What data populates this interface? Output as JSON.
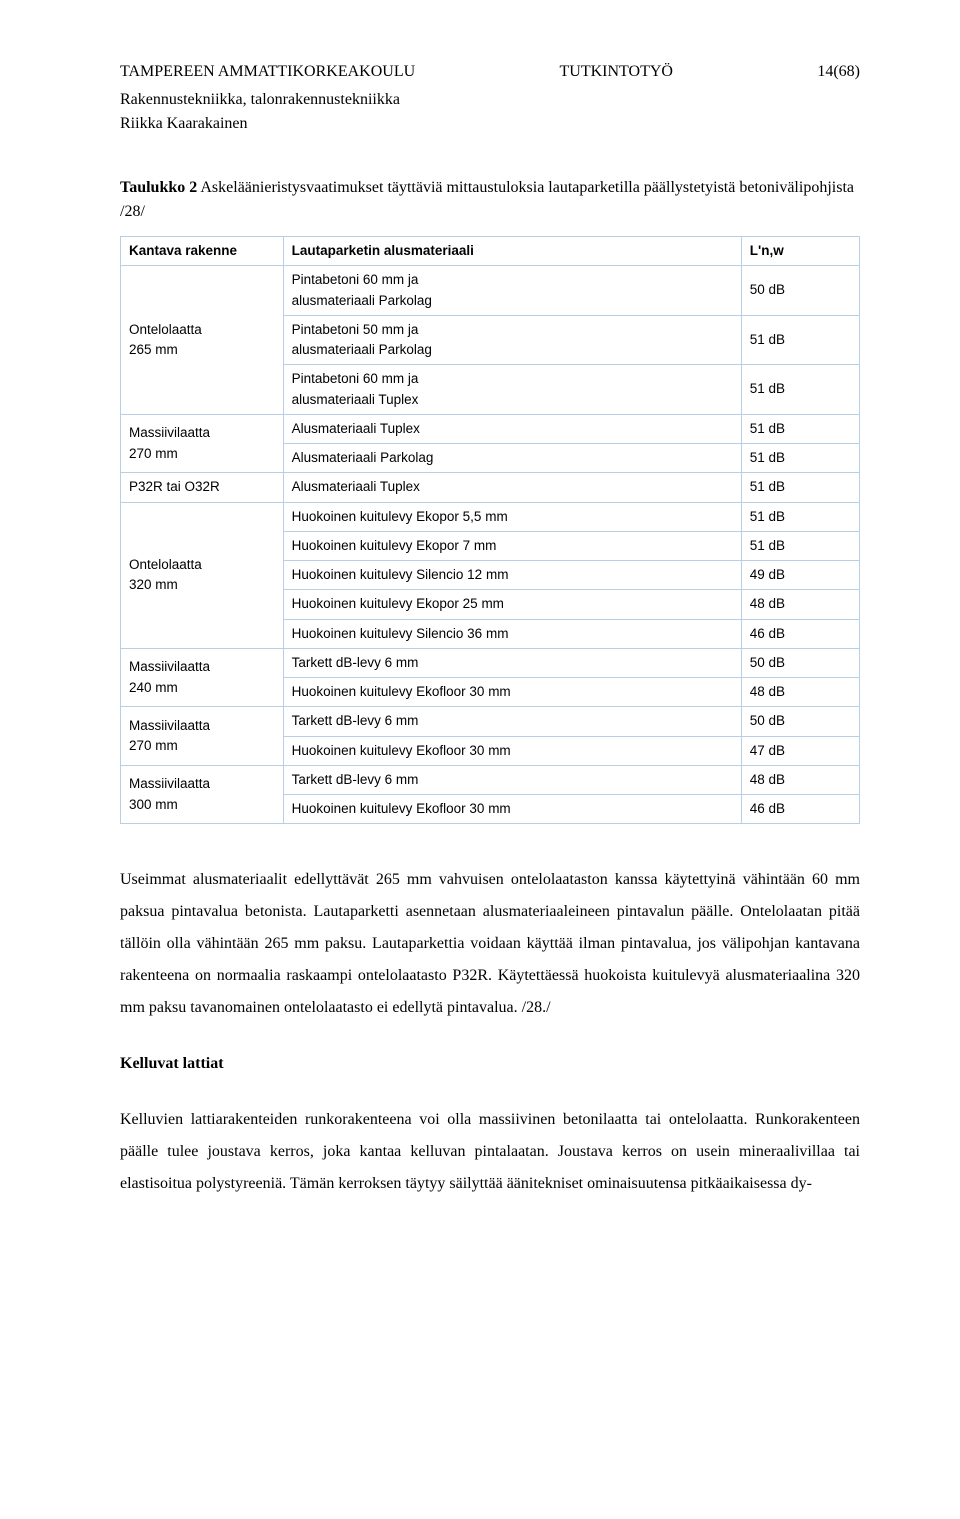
{
  "header": {
    "institution": "TAMPEREEN AMMATTIKORKEAKOULU",
    "doc_type": "TUTKINTOTYÖ",
    "page": "14(68)",
    "dept": "Rakennustekniikka, talonrakennustekniikka",
    "author": "Riikka Kaarakainen"
  },
  "caption": {
    "label": "Taulukko 2",
    "text": "Askeläänieristysvaatimukset täyttäviä mittaustuloksia lautaparketilla päällystetyistä betonivälipohjista /28/"
  },
  "table": {
    "border_color": "#b8cfe5",
    "headers": [
      "Kantava rakenne",
      "Lautaparketin alusmateriaali",
      "L'n,w"
    ],
    "groups": [
      {
        "structure": "Ontelolaatta\n265 mm",
        "rows": [
          {
            "material": "Pintabetoni 60 mm ja\nalusmateriaali Parkolag",
            "lnw": "50 dB"
          },
          {
            "material": "Pintabetoni 50 mm ja\nalusmateriaali Parkolag",
            "lnw": "51 dB"
          },
          {
            "material": "Pintabetoni 60 mm ja\nalusmateriaali Tuplex",
            "lnw": "51 dB"
          }
        ]
      },
      {
        "structure": "Massiivilaatta\n270 mm",
        "rows": [
          {
            "material": "Alusmateriaali Tuplex",
            "lnw": "51 dB"
          },
          {
            "material": "Alusmateriaali Parkolag",
            "lnw": "51 dB"
          }
        ]
      },
      {
        "structure": "P32R tai O32R",
        "rows": [
          {
            "material": "Alusmateriaali Tuplex",
            "lnw": "51 dB"
          }
        ]
      },
      {
        "structure": "Ontelolaatta\n320 mm",
        "rows": [
          {
            "material": "Huokoinen kuitulevy Ekopor 5,5 mm",
            "lnw": "51 dB"
          },
          {
            "material": "Huokoinen kuitulevy Ekopor 7 mm",
            "lnw": "51 dB"
          },
          {
            "material": "Huokoinen kuitulevy Silencio 12 mm",
            "lnw": "49 dB"
          },
          {
            "material": "Huokoinen kuitulevy Ekopor 25 mm",
            "lnw": "48 dB"
          },
          {
            "material": "Huokoinen kuitulevy Silencio 36 mm",
            "lnw": "46 dB"
          }
        ]
      },
      {
        "structure": "Massiivilaatta\n240 mm",
        "rows": [
          {
            "material": "Tarkett dB-levy 6 mm",
            "lnw": "50 dB"
          },
          {
            "material": "Huokoinen kuitulevy Ekofloor 30 mm",
            "lnw": "48 dB"
          }
        ]
      },
      {
        "structure": "Massiivilaatta\n270 mm",
        "rows": [
          {
            "material": "Tarkett dB-levy 6 mm",
            "lnw": "50 dB"
          },
          {
            "material": "Huokoinen kuitulevy Ekofloor 30 mm",
            "lnw": "47 dB"
          }
        ]
      },
      {
        "structure": "Massiivilaatta\n300 mm",
        "rows": [
          {
            "material": "Tarkett dB-levy 6 mm",
            "lnw": "48 dB"
          },
          {
            "material": "Huokoinen kuitulevy Ekofloor 30 mm",
            "lnw": "46 dB"
          }
        ]
      }
    ]
  },
  "paragraphs": {
    "p1": "Useimmat alusmateriaalit edellyttävät 265 mm vahvuisen ontelolaataston kanssa käytettyinä vähintään 60 mm paksua pintavalua betonista. Lautaparketti asennetaan alusmateriaaleineen pintavalun päälle. Ontelolaatan pitää tällöin olla vähintään 265 mm paksu. Lautaparkettia voidaan käyttää ilman pintavalua, jos välipohjan kantavana rakenteena on normaalia raskaampi ontelolaatasto P32R. Käytettäessä huokoista kuitulevyä alusmateriaalina 320 mm paksu tavanomainen ontelolaatasto ei edellytä pintavalua. /28./",
    "heading": "Kelluvat lattiat",
    "p2": "Kelluvien lattiarakenteiden runkorakenteena voi olla massiivinen betonilaatta tai ontelolaatta. Runkorakenteen päälle tulee joustava kerros, joka kantaa kelluvan pintalaatan. Joustava kerros on usein mineraalivillaa tai elastisoitua polystyreeniä. Tämän kerroksen täytyy säilyttää äänitekniset ominaisuutensa pitkäaikaisessa dy-"
  }
}
